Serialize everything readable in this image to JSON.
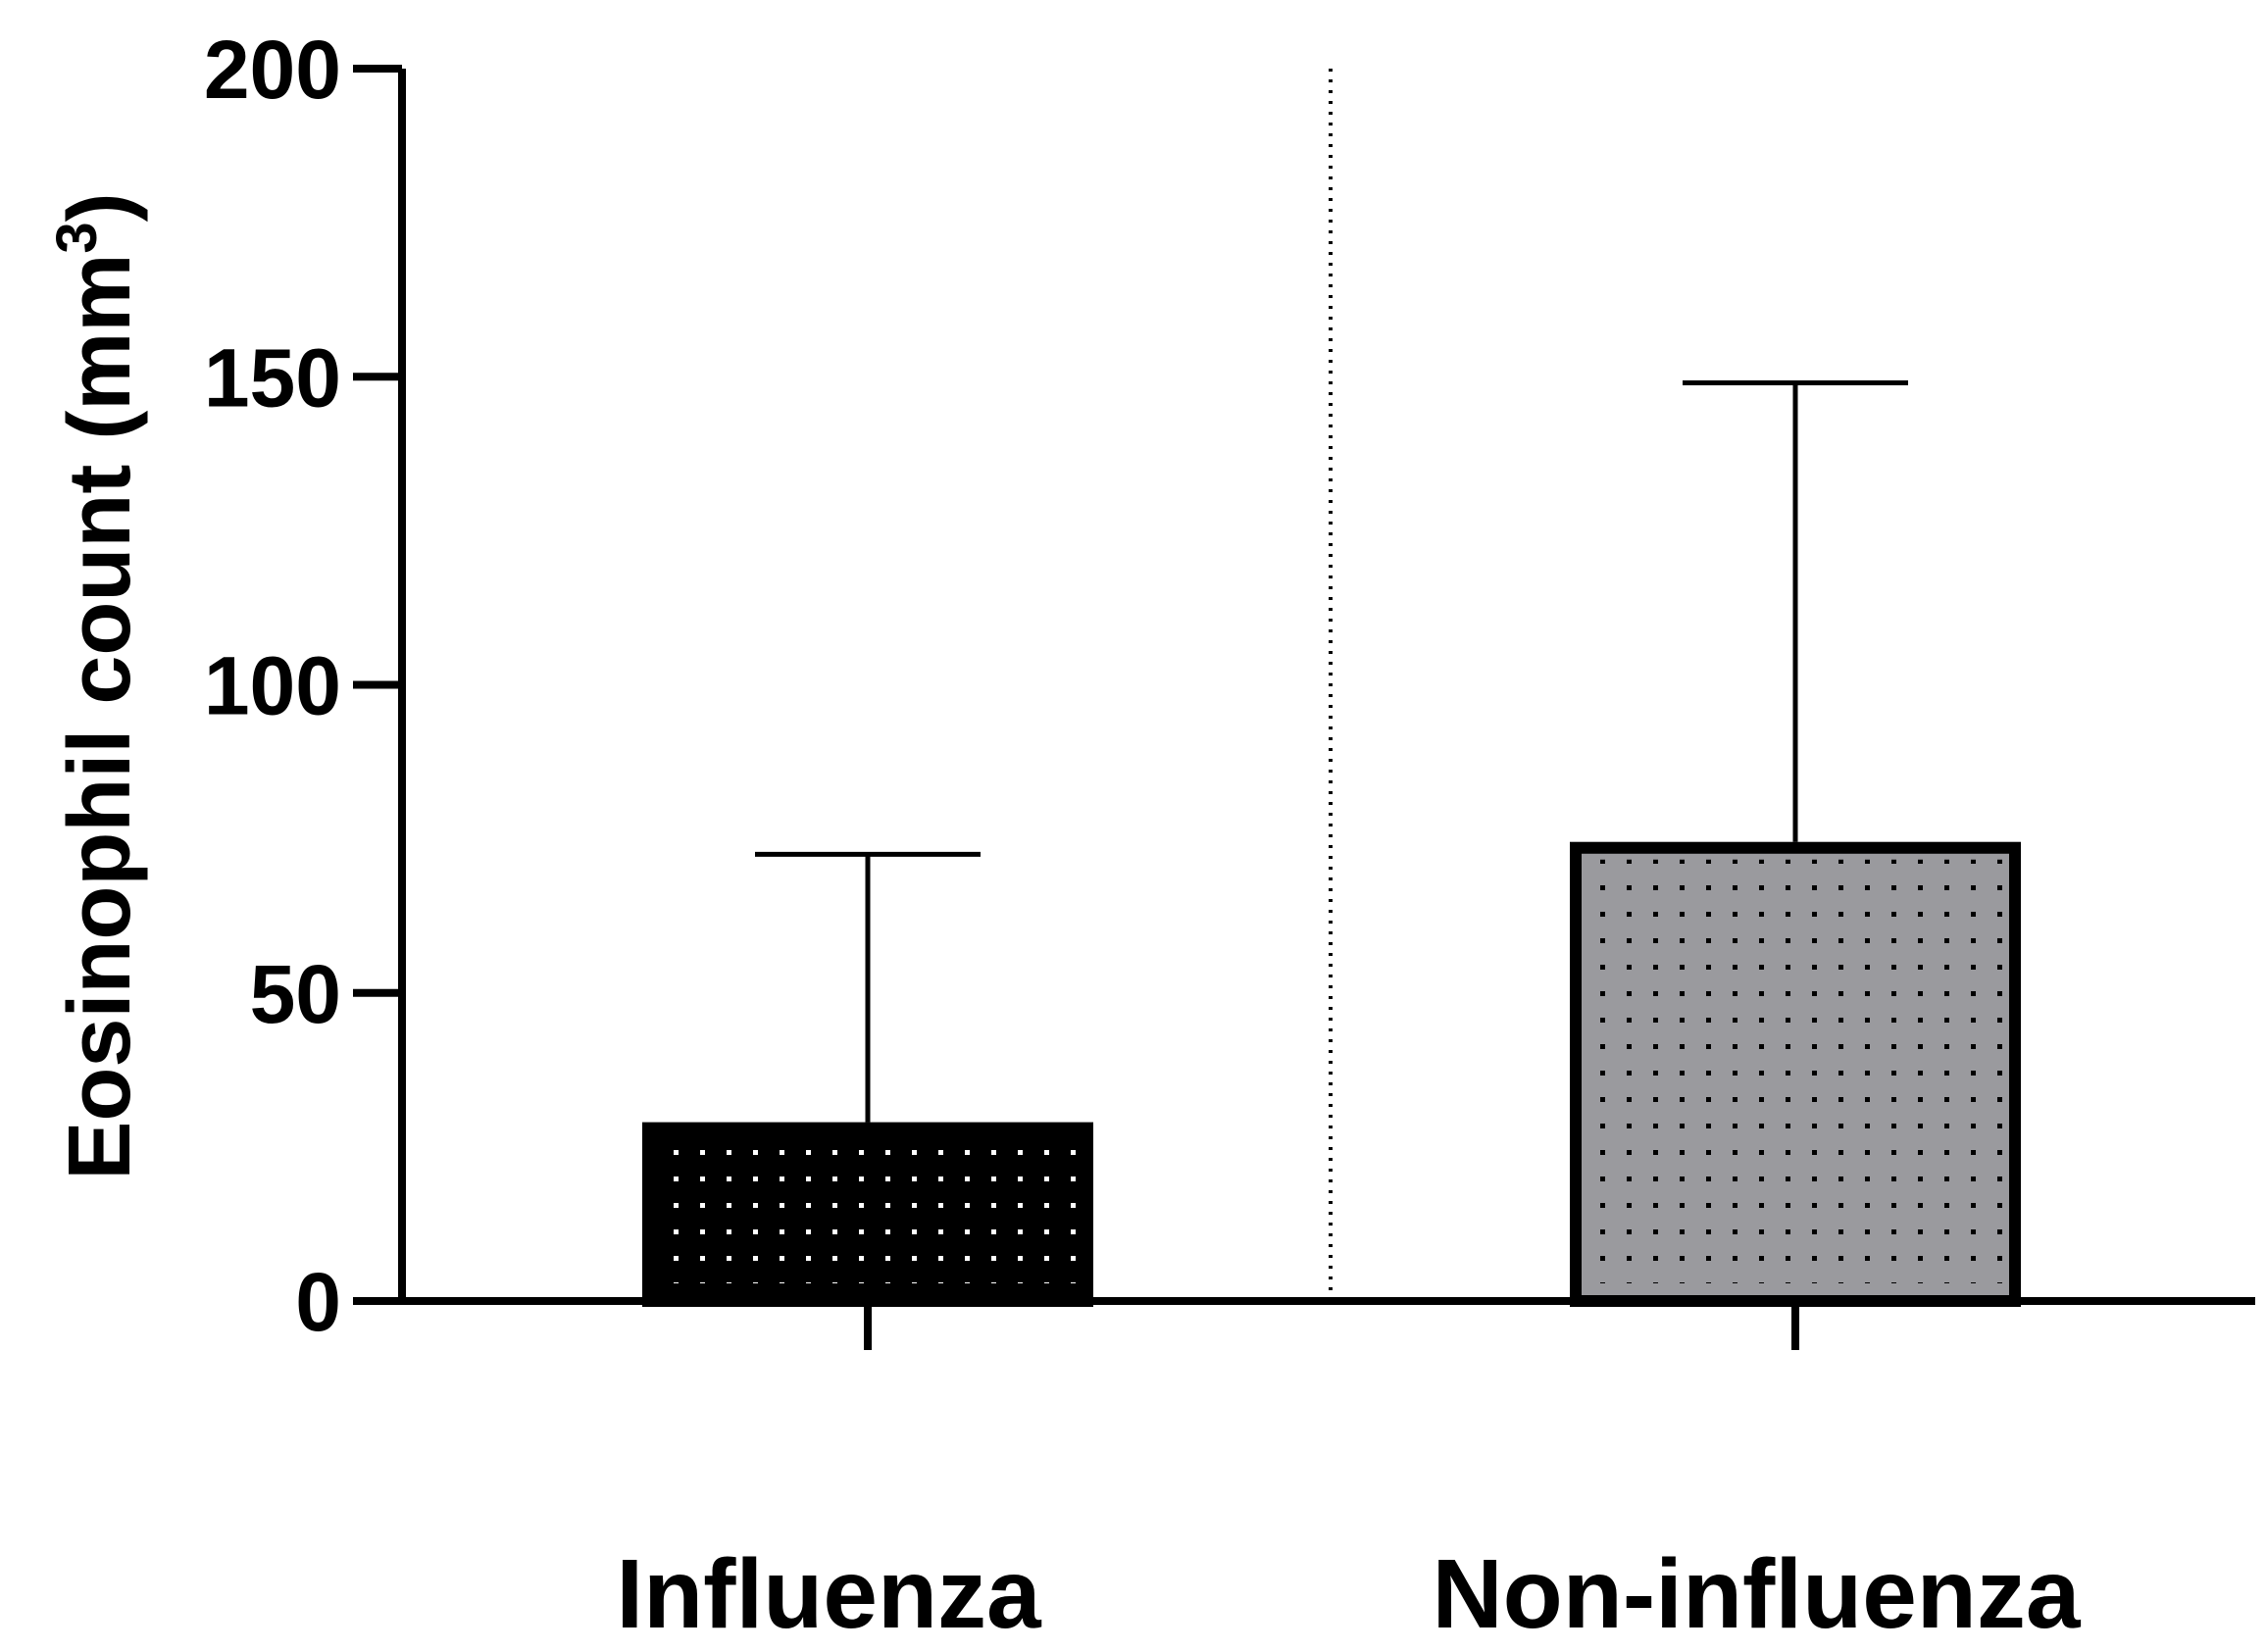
{
  "chart_data": {
    "type": "bar",
    "categories": [
      "Influenza",
      "Non-influenza"
    ],
    "values": [
      29,
      74.5
    ],
    "error_upper": [
      72.5,
      149
    ],
    "ylabel": "Eosinophil count (mm",
    "ylabel_superscript": "3",
    "ylabel_suffix": ")",
    "ylim": [
      0,
      200
    ],
    "yticks": [
      "0",
      "50",
      "100",
      "150",
      "200"
    ],
    "ytick_values": [
      0,
      50,
      100,
      150,
      200
    ],
    "grid": false,
    "legend": "none",
    "bar_fill_colors": [
      "#000000",
      "#9a9a9e"
    ],
    "bar_dot_colors": [
      "#ffffff",
      "#000000"
    ],
    "axis_color": "#000000",
    "separator": "dotted vertical line between groups"
  }
}
